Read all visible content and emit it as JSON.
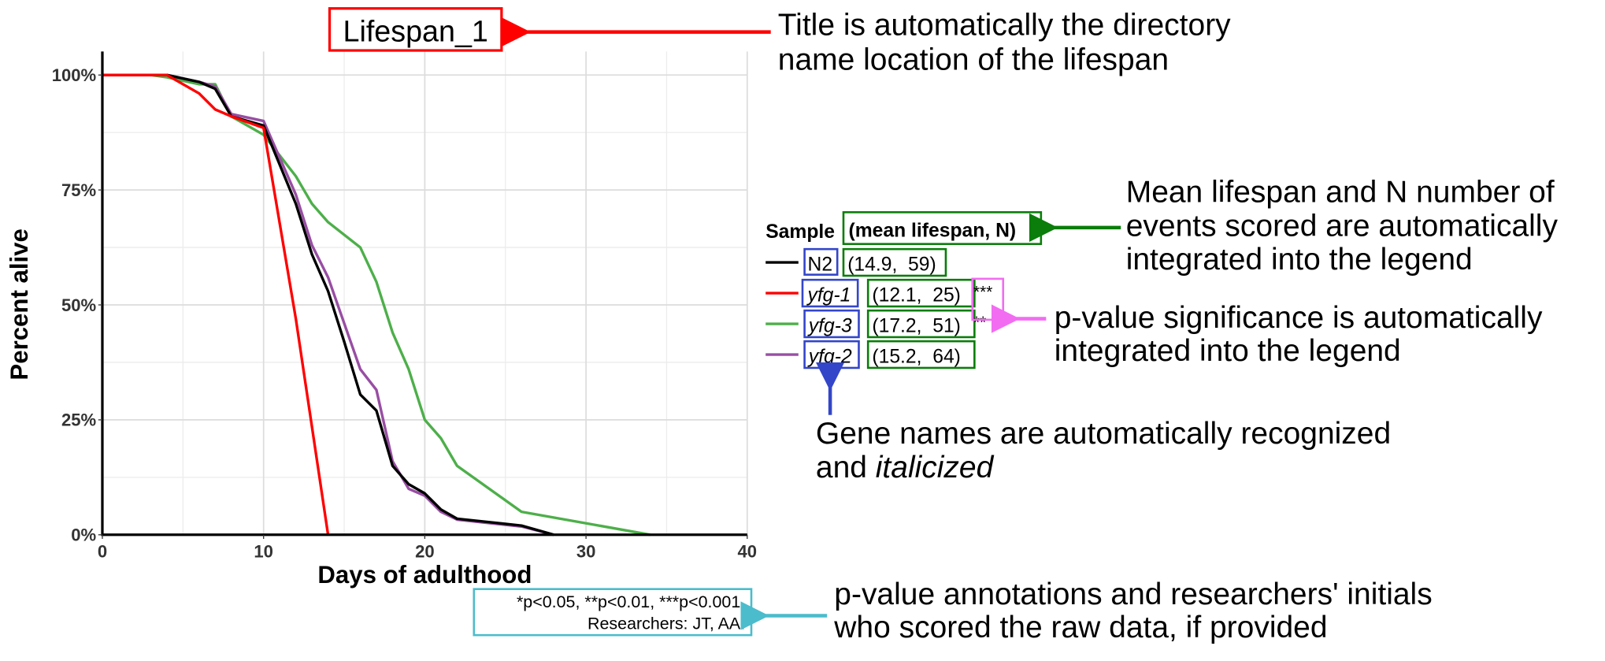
{
  "chart_data": {
    "type": "line",
    "title": "Lifespan_1",
    "xlabel": "Days of adulthood",
    "ylabel": "Percent alive",
    "xlim": [
      0,
      40
    ],
    "ylim": [
      0,
      100
    ],
    "x_ticks": [
      "0",
      "10",
      "20",
      "30",
      "40"
    ],
    "x_tick_values": [
      0,
      10,
      20,
      30,
      40
    ],
    "y_ticks": [
      "0%",
      "25%",
      "50%",
      "75%",
      "100%"
    ],
    "y_tick_values": [
      0,
      25,
      50,
      75,
      100
    ],
    "grid": true,
    "legend": {
      "placement": "right",
      "title_main": "Sample",
      "title_sub": "(mean lifespan, N)",
      "significance_note": "*p<0.05, **p<0.01, ***p<0.001.",
      "researchers": "Researchers: JT, AA."
    },
    "series": [
      {
        "name": "N2",
        "italic": false,
        "stats": "(14.9,  59)",
        "sig": "",
        "color": "#000000",
        "x": [
          0,
          4,
          6,
          7,
          8,
          10,
          12,
          13,
          14,
          15,
          16,
          17,
          18,
          19,
          20,
          21,
          22,
          26,
          28
        ],
        "y": [
          100,
          100,
          98.5,
          97,
          91,
          89,
          72,
          61,
          53,
          42,
          30.5,
          27,
          15,
          11,
          9,
          5.5,
          3.5,
          2,
          0
        ]
      },
      {
        "name": "yfg-1",
        "italic": true,
        "stats": "(12.1,  25)",
        "sig": "***",
        "color": "#ff0000",
        "x": [
          0,
          4,
          6,
          7,
          8,
          10,
          12,
          14
        ],
        "y": [
          100,
          100,
          96,
          92.5,
          91,
          88.5,
          47,
          0
        ]
      },
      {
        "name": "yfg-3",
        "italic": true,
        "stats": "(17.2,  51)",
        "sig": "**",
        "color": "#4daf4a",
        "x": [
          0,
          3,
          4,
          6,
          7,
          8,
          10,
          12,
          13,
          14,
          16,
          17,
          18,
          19,
          20,
          21,
          22,
          26,
          34
        ],
        "y": [
          100,
          100,
          99.5,
          98,
          98,
          91,
          87,
          78,
          72,
          68,
          62.5,
          55,
          44,
          36,
          25,
          21,
          15,
          5,
          0
        ]
      },
      {
        "name": "yfg-2",
        "italic": true,
        "stats": "(15.2,  64)",
        "sig": "",
        "color": "#984ea3",
        "x": [
          0,
          4,
          6,
          7,
          8,
          10,
          12,
          13,
          14,
          16,
          17,
          18,
          19,
          20,
          21,
          22,
          26,
          28
        ],
        "y": [
          100,
          100,
          98.5,
          97.5,
          91.5,
          90,
          74,
          63,
          56,
          36,
          31.5,
          16,
          10,
          8.5,
          5,
          3.3,
          1.8,
          0
        ]
      }
    ]
  },
  "annotations": {
    "title_note": [
      "Title is automatically the directory",
      "name location of the lifespan"
    ],
    "legend_note": [
      "Mean lifespan and N number of",
      "events scored are automatically",
      "integrated into the legend"
    ],
    "pvalue_note": [
      "p-value significance is automatically",
      "integrated into the legend"
    ],
    "gene_note_1": "Gene names are automatically recognized",
    "gene_note_2a": "and ",
    "gene_note_2b": "italicized",
    "footer_note": [
      "p-value annotations and researchers' initials",
      "who scored the raw data, if provided"
    ],
    "colors": {
      "title": "#ff0000",
      "stats": "#0a7d0a",
      "gene": "#3346c9",
      "pvalue": "#f26cf2",
      "footer": "#4bbccc"
    }
  }
}
